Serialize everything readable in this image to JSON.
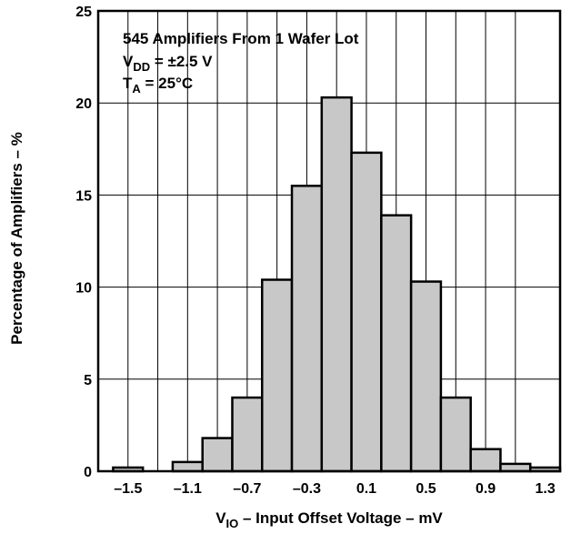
{
  "chart_data": {
    "type": "bar",
    "title": "",
    "xlabel": {
      "symbol": "V",
      "subscript": "IO",
      "text": " – Input Offset Voltage – mV"
    },
    "ylabel": "Percentage of Amplifiers – %",
    "xlim": [
      -1.7,
      1.4
    ],
    "ylim": [
      0,
      25
    ],
    "bin_width": 0.2,
    "x_ticks": [
      -1.5,
      -1.1,
      -0.7,
      -0.3,
      0.1,
      0.5,
      0.9,
      1.3
    ],
    "x_tick_labels": [
      "–1.5",
      "–1.1",
      "–0.7",
      "–0.3",
      "0.1",
      "0.5",
      "0.9",
      "1.3"
    ],
    "y_ticks": [
      0,
      5,
      10,
      15,
      20,
      25
    ],
    "y_tick_labels": [
      "0",
      "5",
      "10",
      "15",
      "20",
      "25"
    ],
    "grid": true,
    "bar_color": "#c8c8c8",
    "bins": [
      {
        "x": -1.6,
        "value": 0.2
      },
      {
        "x": -1.4,
        "value": 0.0
      },
      {
        "x": -1.2,
        "value": 0.5
      },
      {
        "x": -1.0,
        "value": 1.8
      },
      {
        "x": -0.8,
        "value": 4.0
      },
      {
        "x": -0.6,
        "value": 10.4
      },
      {
        "x": -0.4,
        "value": 15.5
      },
      {
        "x": -0.2,
        "value": 20.3
      },
      {
        "x": 0.0,
        "value": 17.3
      },
      {
        "x": 0.2,
        "value": 13.9
      },
      {
        "x": 0.4,
        "value": 10.3
      },
      {
        "x": 0.6,
        "value": 4.0
      },
      {
        "x": 0.8,
        "value": 1.2
      },
      {
        "x": 1.0,
        "value": 0.4
      },
      {
        "x": 1.2,
        "value": 0.2
      }
    ],
    "annotations": {
      "line1": "545 Amplifiers From 1 Wafer Lot",
      "line2": {
        "symbol": "V",
        "subscript": "DD",
        "text": " = ±2.5 V"
      },
      "line3": {
        "symbol": "T",
        "subscript": "A",
        "text": " = 25°C"
      }
    }
  }
}
